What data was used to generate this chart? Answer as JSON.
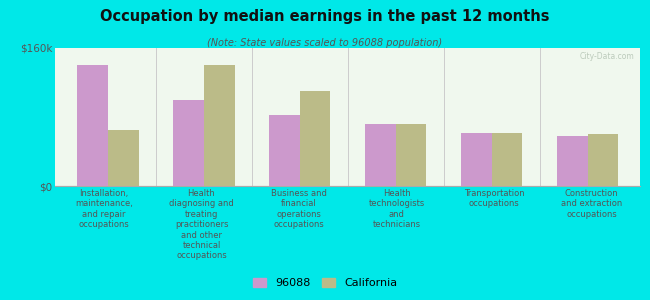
{
  "title": "Occupation by median earnings in the past 12 months",
  "subtitle": "(Note: State values scaled to 96088 population)",
  "categories": [
    "Installation,\nmaintenance,\nand repair\noccupations",
    "Health\ndiagnosing and\ntreating\npractitioners\nand other\ntechnical\noccupations",
    "Business and\nfinancial\noperations\noccupations",
    "Health\ntechnologists\nand\ntechnicians",
    "Transportation\noccupations",
    "Construction\nand extraction\noccupations"
  ],
  "values_96088": [
    140000,
    100000,
    82000,
    72000,
    62000,
    58000
  ],
  "values_california": [
    65000,
    140000,
    110000,
    72000,
    62000,
    60000
  ],
  "color_96088": "#cc99cc",
  "color_california": "#bbbb88",
  "ylim": [
    0,
    160000
  ],
  "ytick_labels": [
    "$0",
    "$160k"
  ],
  "legend_labels": [
    "96088",
    "California"
  ],
  "background_color": "#00e8e8",
  "plot_bg_color": "#f0f8ee",
  "watermark": "City-Data.com"
}
